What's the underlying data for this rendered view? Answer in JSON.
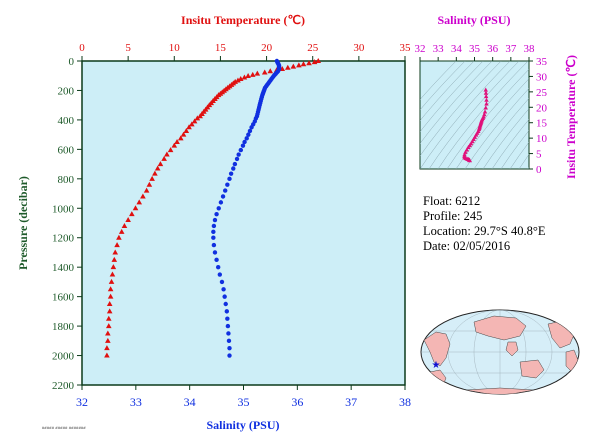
{
  "chart_data": [
    {
      "type": "scatter",
      "panel": "main profile",
      "title_top": "Insitu Temperature (℃)",
      "xlabel_bottom": "Salinity (PSU)",
      "ylabel": "Pressure (decibar)",
      "temperature_axis": {
        "range": [
          0,
          35
        ],
        "ticks": [
          "0",
          "5",
          "10",
          "15",
          "20",
          "25",
          "30",
          "35"
        ]
      },
      "salinity_axis": {
        "range": [
          32,
          38
        ],
        "ticks": [
          "32",
          "33",
          "34",
          "35",
          "36",
          "37",
          "38"
        ]
      },
      "pressure_axis": {
        "range": [
          0,
          2200
        ],
        "reversed": true,
        "ticks": [
          "0",
          "200",
          "400",
          "600",
          "800",
          "1000",
          "1200",
          "1400",
          "1600",
          "1800",
          "2000",
          "2200"
        ]
      },
      "background": "#cdeef7",
      "series": [
        {
          "marker": "triangle",
          "color": "#e01010",
          "temperature_vs_pressure": [
            [
              25.6,
              0
            ],
            [
              25.2,
              8
            ],
            [
              24.6,
              15
            ],
            [
              24.0,
              22
            ],
            [
              23.5,
              30
            ],
            [
              22.9,
              38
            ],
            [
              22.3,
              46
            ],
            [
              21.7,
              54
            ],
            [
              21.1,
              62
            ],
            [
              20.4,
              70
            ],
            [
              19.8,
              78
            ],
            [
              19.0,
              86
            ],
            [
              18.5,
              94
            ],
            [
              18.0,
              102
            ],
            [
              17.6,
              112
            ],
            [
              17.2,
              122
            ],
            [
              16.9,
              132
            ],
            [
              16.6,
              142
            ],
            [
              16.4,
              152
            ],
            [
              16.2,
              162
            ],
            [
              16.0,
              172
            ],
            [
              15.8,
              182
            ],
            [
              15.6,
              192
            ],
            [
              15.4,
              202
            ],
            [
              15.2,
              212
            ],
            [
              15.0,
              222
            ],
            [
              14.8,
              232
            ],
            [
              14.6,
              245
            ],
            [
              14.4,
              258
            ],
            [
              14.2,
              272
            ],
            [
              14.0,
              286
            ],
            [
              13.8,
              300
            ],
            [
              13.6,
              315
            ],
            [
              13.4,
              330
            ],
            [
              13.2,
              345
            ],
            [
              13.0,
              360
            ],
            [
              12.8,
              375
            ],
            [
              12.5,
              390
            ],
            [
              12.2,
              410
            ],
            [
              11.9,
              430
            ],
            [
              11.6,
              450
            ],
            [
              11.3,
              475
            ],
            [
              11.0,
              500
            ],
            [
              10.7,
              525
            ],
            [
              10.3,
              550
            ],
            [
              10.0,
              575
            ],
            [
              9.6,
              605
            ],
            [
              9.2,
              635
            ],
            [
              8.9,
              665
            ],
            [
              8.5,
              700
            ],
            [
              8.2,
              730
            ],
            [
              7.9,
              765
            ],
            [
              7.6,
              800
            ],
            [
              7.3,
              840
            ],
            [
              7.0,
              880
            ],
            [
              6.6,
              920
            ],
            [
              6.2,
              960
            ],
            [
              5.8,
              1000
            ],
            [
              5.4,
              1040
            ],
            [
              5.0,
              1080
            ],
            [
              4.6,
              1120
            ],
            [
              4.3,
              1160
            ],
            [
              4.0,
              1200
            ],
            [
              3.8,
              1250
            ],
            [
              3.6,
              1300
            ],
            [
              3.5,
              1350
            ],
            [
              3.4,
              1400
            ],
            [
              3.3,
              1450
            ],
            [
              3.2,
              1500
            ],
            [
              3.1,
              1550
            ],
            [
              3.1,
              1600
            ],
            [
              3.0,
              1650
            ],
            [
              3.0,
              1700
            ],
            [
              2.9,
              1750
            ],
            [
              2.9,
              1800
            ],
            [
              2.8,
              1850
            ],
            [
              2.8,
              1900
            ],
            [
              2.7,
              1950
            ],
            [
              2.7,
              2000
            ]
          ]
        },
        {
          "marker": "circle",
          "color": "#1030e0",
          "salinity_vs_pressure": [
            [
              35.62,
              0
            ],
            [
              35.63,
              8
            ],
            [
              35.64,
              15
            ],
            [
              35.65,
              22
            ],
            [
              35.66,
              30
            ],
            [
              35.66,
              38
            ],
            [
              35.66,
              46
            ],
            [
              35.66,
              54
            ],
            [
              35.65,
              62
            ],
            [
              35.64,
              70
            ],
            [
              35.62,
              78
            ],
            [
              35.6,
              86
            ],
            [
              35.58,
              94
            ],
            [
              35.56,
              102
            ],
            [
              35.54,
              112
            ],
            [
              35.52,
              122
            ],
            [
              35.5,
              132
            ],
            [
              35.48,
              142
            ],
            [
              35.46,
              152
            ],
            [
              35.44,
              162
            ],
            [
              35.42,
              172
            ],
            [
              35.4,
              182
            ],
            [
              35.39,
              192
            ],
            [
              35.38,
              202
            ],
            [
              35.37,
              212
            ],
            [
              35.36,
              222
            ],
            [
              35.35,
              232
            ],
            [
              35.34,
              245
            ],
            [
              35.33,
              258
            ],
            [
              35.32,
              272
            ],
            [
              35.31,
              286
            ],
            [
              35.3,
              300
            ],
            [
              35.29,
              315
            ],
            [
              35.28,
              330
            ],
            [
              35.27,
              345
            ],
            [
              35.26,
              360
            ],
            [
              35.25,
              375
            ],
            [
              35.23,
              390
            ],
            [
              35.21,
              410
            ],
            [
              35.18,
              430
            ],
            [
              35.15,
              450
            ],
            [
              35.12,
              475
            ],
            [
              35.09,
              500
            ],
            [
              35.06,
              525
            ],
            [
              35.02,
              550
            ],
            [
              34.99,
              575
            ],
            [
              34.95,
              605
            ],
            [
              34.91,
              635
            ],
            [
              34.88,
              665
            ],
            [
              34.84,
              700
            ],
            [
              34.81,
              730
            ],
            [
              34.77,
              765
            ],
            [
              34.74,
              800
            ],
            [
              34.7,
              840
            ],
            [
              34.66,
              880
            ],
            [
              34.62,
              920
            ],
            [
              34.58,
              960
            ],
            [
              34.54,
              1000
            ],
            [
              34.5,
              1040
            ],
            [
              34.47,
              1080
            ],
            [
              34.45,
              1120
            ],
            [
              34.44,
              1160
            ],
            [
              34.44,
              1200
            ],
            [
              34.45,
              1250
            ],
            [
              34.47,
              1300
            ],
            [
              34.5,
              1350
            ],
            [
              34.53,
              1400
            ],
            [
              34.56,
              1450
            ],
            [
              34.6,
              1500
            ],
            [
              34.63,
              1550
            ],
            [
              34.65,
              1600
            ],
            [
              34.67,
              1650
            ],
            [
              34.69,
              1700
            ],
            [
              34.7,
              1750
            ],
            [
              34.71,
              1800
            ],
            [
              34.72,
              1850
            ],
            [
              34.73,
              1900
            ],
            [
              34.74,
              1950
            ],
            [
              34.74,
              2000
            ]
          ]
        }
      ]
    },
    {
      "type": "scatter",
      "panel": "T-S diagram",
      "title_top": "Salinity (PSU)",
      "ylabel": "Insitu Temperature (℃)",
      "xlim": [
        32,
        38
      ],
      "xticks": [
        "32",
        "33",
        "34",
        "35",
        "36",
        "37",
        "38"
      ],
      "ylim": [
        0,
        35
      ],
      "yticks": [
        "0",
        "5",
        "10",
        "15",
        "20",
        "25",
        "30",
        "35"
      ],
      "marker_color": "#e0107a",
      "label_color": "#cc00cc",
      "points_salinity_temperature": [
        [
          35.62,
          25.6
        ],
        [
          35.63,
          24.6
        ],
        [
          35.64,
          23.5
        ],
        [
          35.66,
          22.3
        ],
        [
          35.66,
          21.1
        ],
        [
          35.62,
          19.8
        ],
        [
          35.58,
          18.5
        ],
        [
          35.54,
          17.6
        ],
        [
          35.5,
          16.9
        ],
        [
          35.46,
          16.4
        ],
        [
          35.42,
          16.0
        ],
        [
          35.39,
          15.6
        ],
        [
          35.37,
          15.2
        ],
        [
          35.35,
          14.8
        ],
        [
          35.33,
          14.4
        ],
        [
          35.31,
          14.0
        ],
        [
          35.29,
          13.6
        ],
        [
          35.27,
          13.2
        ],
        [
          35.25,
          12.8
        ],
        [
          35.21,
          12.2
        ],
        [
          35.15,
          11.6
        ],
        [
          35.09,
          11.0
        ],
        [
          35.02,
          10.3
        ],
        [
          34.95,
          9.6
        ],
        [
          34.88,
          8.9
        ],
        [
          34.81,
          8.2
        ],
        [
          34.74,
          7.6
        ],
        [
          34.66,
          7.0
        ],
        [
          34.58,
          6.2
        ],
        [
          34.5,
          5.4
        ],
        [
          34.45,
          4.6
        ],
        [
          34.44,
          4.0
        ],
        [
          34.47,
          3.6
        ],
        [
          34.53,
          3.4
        ],
        [
          34.6,
          3.2
        ],
        [
          34.65,
          3.1
        ],
        [
          34.69,
          3.0
        ],
        [
          34.71,
          2.9
        ],
        [
          34.73,
          2.8
        ],
        [
          34.74,
          2.7
        ]
      ]
    }
  ],
  "info": {
    "float": "Float:  6212",
    "profile": "Profile:  245",
    "location": "Location:  29.7°S  40.8°E",
    "date": "Date:  02/05/2016"
  },
  "map": {
    "land_color": "#f4b6b4",
    "ocean_color": "#d6eef8",
    "marker": "star",
    "marker_color": "#1010d0"
  },
  "footer": "##### ##### #######",
  "colors": {
    "temperature": "#e01010",
    "salinity": "#1030e0",
    "axis": "#0b3a1a",
    "pressure_label": "#1e5a2a"
  }
}
